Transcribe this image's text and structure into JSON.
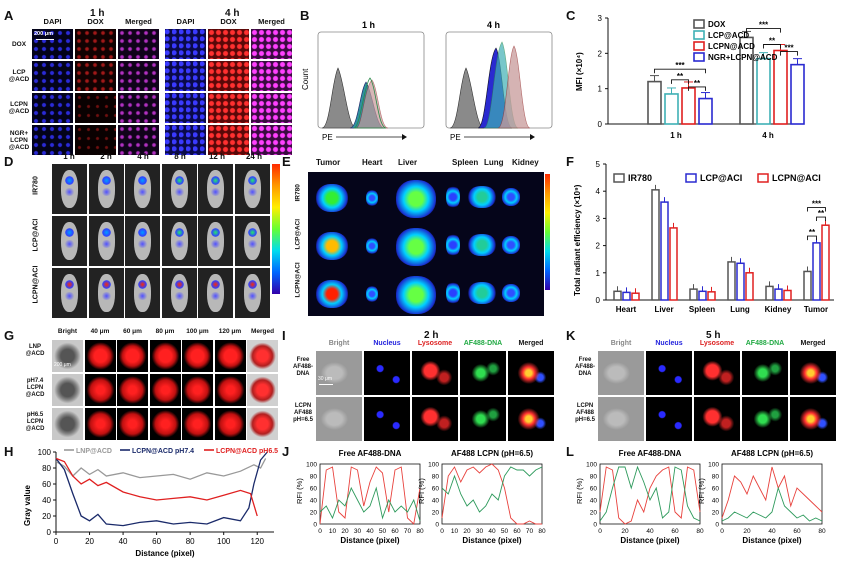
{
  "panels": {
    "A": "A",
    "B": "B",
    "C": "C",
    "D": "D",
    "E": "E",
    "F": "F",
    "G": "G",
    "H": "H",
    "I": "I",
    "J": "J",
    "K": "K",
    "L": "L"
  },
  "colors": {
    "dox": "#555555",
    "lcp": "#3fb0b5",
    "lcpn": "#e02020",
    "ngr": "#2a2ad0",
    "ir780": "#555555",
    "lcp_aci": "#2a2ad0",
    "lcpn_aci": "#e02020",
    "lnp_gray": "#999999",
    "lcpn74": "#1a2a6a",
    "lcpn65": "#e02020",
    "rfi_red": "#e8413c",
    "rfi_green": "#2e9a5c"
  },
  "a": {
    "time1": "1 h",
    "time2": "4 h",
    "cols": [
      "DAPI",
      "DOX",
      "Merged",
      "DAPI",
      "DOX",
      "Merged"
    ],
    "rows": [
      "DOX",
      "LCP @ACD",
      "LCPN @ACD",
      "NGR+ LCPN @ACD"
    ],
    "scale": "200 μm"
  },
  "b": {
    "t1": "1 h",
    "t2": "4 h",
    "ylabel": "Count",
    "xlabel": "PE"
  },
  "c": {
    "ylabel": "MFI (×10⁴)",
    "x1": "1 h",
    "x2": "4 h",
    "legend": [
      "DOX",
      "LCP@ACD",
      "LCPN@ACD",
      "NGR+LCPN@ACD"
    ],
    "sig": [
      "***",
      "**",
      "**",
      "***",
      "**",
      "***"
    ],
    "yticks": [
      "0",
      "1",
      "2",
      "3"
    ]
  },
  "d": {
    "times": [
      "1 h",
      "2 h",
      "4 h",
      "8 h",
      "12 h",
      "24 h"
    ],
    "rows": [
      "IR780",
      "LCP@ACI",
      "LCPN@ACI"
    ]
  },
  "e": {
    "organs": [
      "Tumor",
      "Heart",
      "Liver",
      "Spleen",
      "Lung",
      "Kidney"
    ],
    "rows": [
      "IR780",
      "LCP@ACI",
      "LCPN@ACI"
    ]
  },
  "f": {
    "ylabel": "Total radiant efficiency (×10⁹)",
    "legend": [
      "IR780",
      "LCP@ACI",
      "LCPN@ACI"
    ],
    "xcats": [
      "Heart",
      "Liver",
      "Spleen",
      "Lung",
      "Kidney",
      "Tumor"
    ],
    "yticks": [
      "0",
      "1",
      "2",
      "3",
      "4",
      "5"
    ],
    "sig": [
      "***",
      "**",
      "**"
    ]
  },
  "g": {
    "cols": [
      "Bright",
      "40 μm",
      "60 μm",
      "80 μm",
      "100 μm",
      "120 μm",
      "Merged"
    ],
    "rows": [
      "LNP @ACD",
      "pH7.4 LCPN @ACD",
      "pH6.5 LCPN @ACD"
    ],
    "scale": "200 μm"
  },
  "h": {
    "legend": [
      "LNP@ACD",
      "LCPN@ACD pH7.4",
      "LCPN@ACD pH6.5"
    ],
    "ylabel": "Gray value",
    "xlabel": "Distance (pixel)",
    "yticks": [
      "0",
      "20",
      "40",
      "60",
      "80",
      "100"
    ],
    "xticks": [
      "0",
      "20",
      "40",
      "60",
      "80",
      "100",
      "120"
    ]
  },
  "i": {
    "title": "2 h",
    "cols": [
      "Bright",
      "Nucleus",
      "Lysosome",
      "AF488-DNA",
      "Merged"
    ],
    "rows": [
      "Free AF488- DNA",
      "LCPN AF488 pH=6.5"
    ],
    "scale": "30 μm"
  },
  "k": {
    "title": "5 h",
    "cols": [
      "Bright",
      "Nucleus",
      "Lysosome",
      "AF488-DNA",
      "Merged"
    ],
    "rows": [
      "Free AF488- DNA",
      "LCPN AF488 pH=6.5"
    ]
  },
  "j": {
    "t1": "Free AF488-DNA",
    "t2": "AF488 LCPN (pH=6.5)",
    "ylabel": "RFI (%)",
    "xlabel": "Distance (pixel)",
    "yticks": [
      "0",
      "20",
      "40",
      "60",
      "80",
      "100"
    ],
    "xticks": [
      "0",
      "10",
      "20",
      "30",
      "40",
      "50",
      "60",
      "70",
      "80"
    ]
  },
  "l": {
    "t1": "Free AF488-DNA",
    "t2": "AF488 LCPN (pH=6.5)",
    "ylabel": "RFI (%)",
    "xlabel": "Distance (pixel)",
    "yticks": [
      "0",
      "20",
      "40",
      "60",
      "80",
      "100"
    ],
    "xticks": [
      "0",
      "20",
      "40",
      "60",
      "80"
    ]
  },
  "chart_data": [
    {
      "type": "bar",
      "panel": "C",
      "categories": [
        "1 h",
        "4 h"
      ],
      "series": [
        {
          "name": "DOX",
          "values": [
            1.2,
            2.45
          ]
        },
        {
          "name": "LCP@ACD",
          "values": [
            0.85,
            1.85
          ]
        },
        {
          "name": "LCPN@ACD",
          "values": [
            1.02,
            2.08
          ]
        },
        {
          "name": "NGR+LCPN@ACD",
          "values": [
            0.72,
            1.68
          ]
        }
      ],
      "ylabel": "MFI (×10⁴)",
      "ylim": [
        0,
        3
      ]
    },
    {
      "type": "bar",
      "panel": "F",
      "categories": [
        "Heart",
        "Liver",
        "Spleen",
        "Lung",
        "Kidney",
        "Tumor"
      ],
      "series": [
        {
          "name": "IR780",
          "values": [
            0.32,
            4.05,
            0.4,
            1.4,
            0.5,
            1.05
          ]
        },
        {
          "name": "LCP@ACI",
          "values": [
            0.28,
            3.6,
            0.32,
            1.35,
            0.4,
            2.1
          ]
        },
        {
          "name": "LCPN@ACI",
          "values": [
            0.25,
            2.65,
            0.3,
            1.0,
            0.35,
            2.75
          ]
        }
      ],
      "ylabel": "Total radiant efficiency (×10⁹)",
      "ylim": [
        0,
        5
      ]
    }
  ]
}
